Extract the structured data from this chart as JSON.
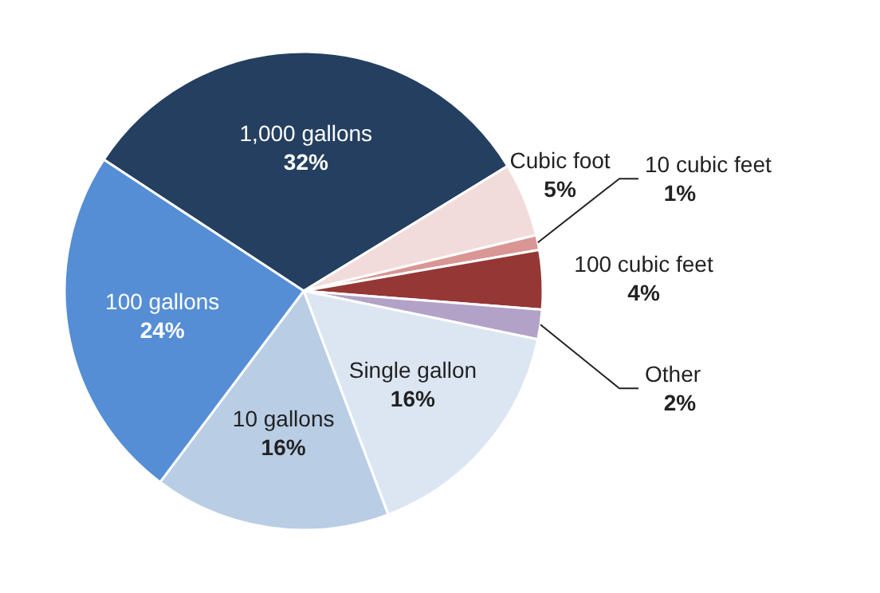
{
  "chart_data": {
    "type": "pie",
    "categories": [
      "1,000 gallons",
      "Cubic foot",
      "10 cubic feet",
      "100 cubic feet",
      "Other",
      "Single gallon",
      "10 gallons",
      "100 gallons"
    ],
    "values": [
      32,
      5,
      1,
      4,
      2,
      16,
      16,
      24
    ],
    "value_labels": [
      "32%",
      "5%",
      "1%",
      "4%",
      "2%",
      "16%",
      "16%",
      "24%"
    ],
    "colors": [
      "#243f60",
      "#f2dcdb",
      "#d99694",
      "#953735",
      "#b3a2c7",
      "#dce6f2",
      "#b9cde5",
      "#558ed5"
    ]
  }
}
